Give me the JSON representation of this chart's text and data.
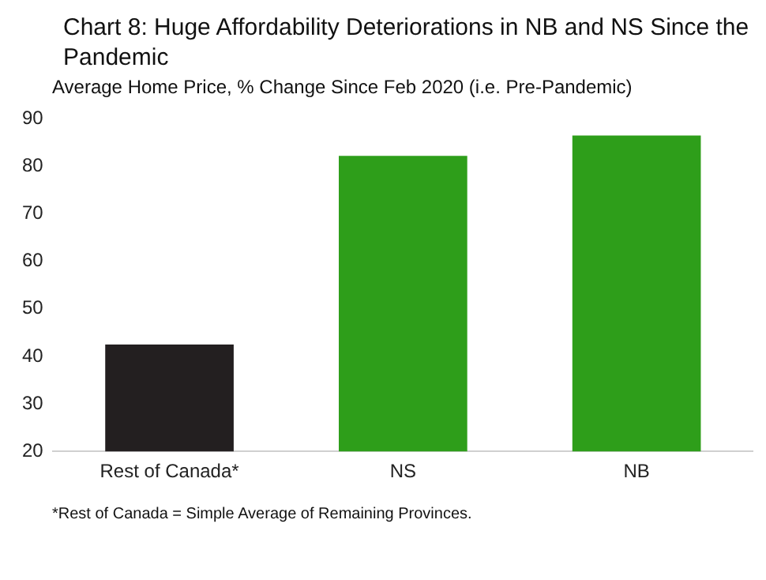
{
  "chart_data": {
    "type": "bar",
    "title": "Chart 8: Huge Affordability Deteriorations in NB and NS Since the Pandemic",
    "subtitle": "Average Home Price, % Change Since Feb 2020 (i.e. Pre-Pandemic)",
    "categories": [
      "Rest of Canada*",
      "NS",
      "NB"
    ],
    "values": [
      42.5,
      82.2,
      86.5
    ],
    "colors": [
      "#231f20",
      "#2e9e1a",
      "#2e9e1a"
    ],
    "ylim": [
      20,
      90
    ],
    "yticks": [
      20,
      30,
      40,
      50,
      60,
      70,
      80,
      90
    ],
    "grid": false,
    "annotations": [
      "*Rest of Canada = Simple Average of Remaining Provinces."
    ]
  }
}
